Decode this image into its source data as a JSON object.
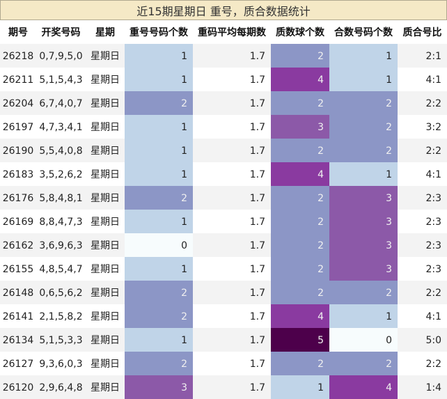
{
  "title": "近15期星期日 重号，质合数据统计",
  "chart_data": {
    "type": "table",
    "columns": [
      "期号",
      "开奖号码",
      "星期",
      "重号号码个数",
      "重码平均每期数",
      "质数球个数",
      "合数号码个数",
      "质合号比"
    ],
    "rows": [
      [
        "26218",
        "0,7,9,5,0",
        "星期日",
        1,
        1.7,
        2,
        1,
        "2:1"
      ],
      [
        "26211",
        "5,1,5,4,3",
        "星期日",
        1,
        1.7,
        4,
        1,
        "4:1"
      ],
      [
        "26204",
        "6,7,4,0,7",
        "星期日",
        2,
        1.7,
        2,
        2,
        "2:2"
      ],
      [
        "26197",
        "4,7,3,4,1",
        "星期日",
        1,
        1.7,
        3,
        2,
        "3:2"
      ],
      [
        "26190",
        "5,5,4,0,8",
        "星期日",
        1,
        1.7,
        2,
        2,
        "2:2"
      ],
      [
        "26183",
        "3,5,2,6,2",
        "星期日",
        1,
        1.7,
        4,
        1,
        "4:1"
      ],
      [
        "26176",
        "5,8,4,8,1",
        "星期日",
        2,
        1.7,
        2,
        3,
        "2:3"
      ],
      [
        "26169",
        "8,8,4,7,3",
        "星期日",
        1,
        1.7,
        2,
        3,
        "2:3"
      ],
      [
        "26162",
        "3,6,9,6,3",
        "星期日",
        0,
        1.7,
        2,
        3,
        "2:3"
      ],
      [
        "26155",
        "4,8,5,4,7",
        "星期日",
        1,
        1.7,
        2,
        3,
        "2:3"
      ],
      [
        "26148",
        "0,6,5,6,2",
        "星期日",
        2,
        1.7,
        2,
        2,
        "2:2"
      ],
      [
        "26141",
        "2,1,5,8,2",
        "星期日",
        2,
        1.7,
        4,
        1,
        "4:1"
      ],
      [
        "26134",
        "5,1,5,3,3",
        "星期日",
        1,
        1.7,
        5,
        0,
        "5:0"
      ],
      [
        "26127",
        "9,3,6,0,3",
        "星期日",
        2,
        1.7,
        2,
        2,
        "2:2"
      ],
      [
        "26120",
        "2,9,6,4,8",
        "星期日",
        3,
        1.7,
        1,
        4,
        "1:4"
      ]
    ],
    "heatmap_columns": [
      3,
      5,
      6
    ],
    "colors": {
      "0": "#f7fcfd",
      "1": "#c0d4e8",
      "2": "#8c96c6",
      "3": "#8c59a8",
      "4": "#8a3aa0",
      "5": "#4d004b",
      "text_dark": "#222222",
      "text_light": "#f0f0f0",
      "row_stripe": "#f3f3f3",
      "header_text": "#111111"
    }
  }
}
